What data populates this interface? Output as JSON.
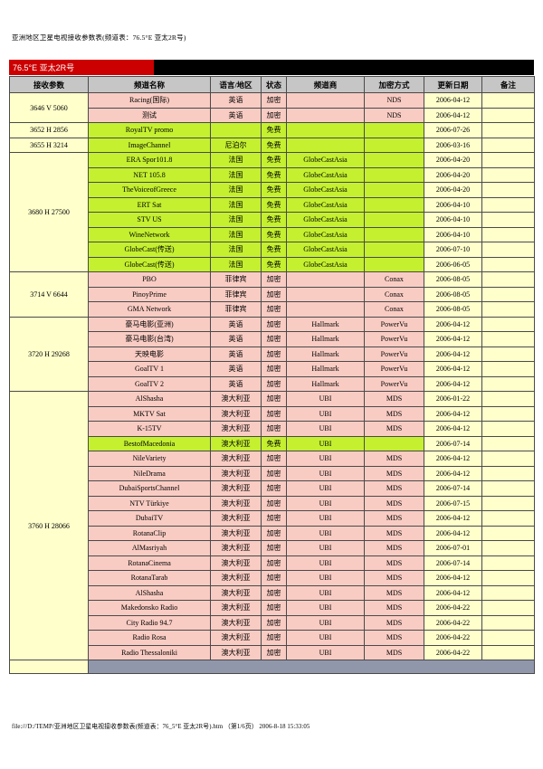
{
  "page": {
    "title": "亚洲地区卫星电视接收参数表(频道表：76.5°E 亚太2R号)",
    "footer": "file:///D:/TEMP/亚洲地区卫星电视接收参数表(频道表：76_5°E 亚太2R号).htm （第1/6页） 2006-8-18 15:33:05"
  },
  "banner": {
    "label": "76.5°E 亚太2R号"
  },
  "colors": {
    "banner_red": "#cc0000",
    "banner_black": "#000000",
    "header_gray": "#c6c6c6",
    "encrypted_row_bg": "#f9ccc3",
    "free_row_bg": "#c4f030",
    "param_column_bg": "#ffffcc",
    "end_bar_bg": "#9197ab",
    "encrypted_text": "#e00000",
    "free_text": "#008a00"
  },
  "table": {
    "headers": [
      "接收参数",
      "频道名称",
      "语言/地区",
      "状态",
      "频道商",
      "加密方式",
      "更新日期",
      "备注"
    ],
    "rows": [
      {
        "param": "3646 V 5060",
        "span": 2,
        "name": "Racing(国际)",
        "lang": "英语",
        "status": "加密",
        "free": false,
        "provider": "",
        "encryption": "NDS",
        "date": "2006-04-12",
        "note": ""
      },
      {
        "name": "测试",
        "lang": "英语",
        "status": "加密",
        "free": false,
        "provider": "",
        "encryption": "NDS",
        "date": "2006-04-12",
        "note": ""
      },
      {
        "param": "3652 H 2856",
        "span": 1,
        "name": "RoyalTV promo",
        "lang": "",
        "status": "免费",
        "free": true,
        "provider": "",
        "encryption": "",
        "date": "2006-07-26",
        "note": ""
      },
      {
        "param": "3655 H 3214",
        "span": 1,
        "name": "ImageChannel",
        "lang": "尼泊尔",
        "status": "免费",
        "free": true,
        "provider": "",
        "encryption": "",
        "date": "2006-03-16",
        "note": ""
      },
      {
        "param": "3680 H 27500",
        "span": 8,
        "name": "ERA Spor101.8",
        "lang": "法国",
        "status": "免费",
        "free": true,
        "provider": "GlobeCastAsia",
        "encryption": "",
        "date": "2006-04-20",
        "note": ""
      },
      {
        "name": "NET 105.8",
        "lang": "法国",
        "status": "免费",
        "free": true,
        "provider": "GlobeCastAsia",
        "encryption": "",
        "date": "2006-04-20",
        "note": ""
      },
      {
        "name": "TheVoiceofGreece",
        "lang": "法国",
        "status": "免费",
        "free": true,
        "provider": "GlobeCastAsia",
        "encryption": "",
        "date": "2006-04-20",
        "note": ""
      },
      {
        "name": "ERT Sat",
        "lang": "法国",
        "status": "免费",
        "free": true,
        "provider": "GlobeCastAsia",
        "encryption": "",
        "date": "2006-04-10",
        "note": ""
      },
      {
        "name": "STV US",
        "lang": "法国",
        "status": "免费",
        "free": true,
        "provider": "GlobeCastAsia",
        "encryption": "",
        "date": "2006-04-10",
        "note": ""
      },
      {
        "name": "WineNetwork",
        "lang": "法国",
        "status": "免费",
        "free": true,
        "provider": "GlobeCastAsia",
        "encryption": "",
        "date": "2006-04-10",
        "note": ""
      },
      {
        "name": "GlobeCast(传送)",
        "lang": "法国",
        "status": "免费",
        "free": true,
        "provider": "GlobeCastAsia",
        "encryption": "",
        "date": "2006-07-10",
        "note": ""
      },
      {
        "name": "GlobeCast(传送)",
        "lang": "法国",
        "status": "免费",
        "free": true,
        "provider": "GlobeCastAsia",
        "encryption": "",
        "date": "2006-06-05",
        "note": ""
      },
      {
        "param": "3714 V 6644",
        "span": 3,
        "name": "PBO",
        "lang": "菲律宾",
        "status": "加密",
        "free": false,
        "provider": "",
        "encryption": "Conax",
        "date": "2006-08-05",
        "note": ""
      },
      {
        "name": "PinoyPrime",
        "lang": "菲律宾",
        "status": "加密",
        "free": false,
        "provider": "",
        "encryption": "Conax",
        "date": "2006-08-05",
        "note": ""
      },
      {
        "name": "GMA Network",
        "lang": "菲律宾",
        "status": "加密",
        "free": false,
        "provider": "",
        "encryption": "Conax",
        "date": "2006-08-05",
        "note": ""
      },
      {
        "param": "3720 H 29268",
        "span": 5,
        "name": "豪马电影(亚洲)",
        "lang": "英语",
        "status": "加密",
        "free": false,
        "provider": "Hallmark",
        "encryption": "PowerVu",
        "date": "2006-04-12",
        "note": ""
      },
      {
        "name": "豪马电影(台湾)",
        "lang": "英语",
        "status": "加密",
        "free": false,
        "provider": "Hallmark",
        "encryption": "PowerVu",
        "date": "2006-04-12",
        "note": ""
      },
      {
        "name": "天映电影",
        "lang": "英语",
        "status": "加密",
        "free": false,
        "provider": "Hallmark",
        "encryption": "PowerVu",
        "date": "2006-04-12",
        "note": ""
      },
      {
        "name": "GoalTV 1",
        "lang": "英语",
        "status": "加密",
        "free": false,
        "provider": "Hallmark",
        "encryption": "PowerVu",
        "date": "2006-04-12",
        "note": ""
      },
      {
        "name": "GoalTV 2",
        "lang": "英语",
        "status": "加密",
        "free": false,
        "provider": "Hallmark",
        "encryption": "PowerVu",
        "date": "2006-04-12",
        "note": ""
      },
      {
        "param": "3760 H 28066",
        "span": 18,
        "name": "AlShasha",
        "lang": "澳大利亚",
        "status": "加密",
        "free": false,
        "provider": "UBI",
        "encryption": "MDS",
        "date": "2006-01-22",
        "note": ""
      },
      {
        "name": "MKTV Sat",
        "lang": "澳大利亚",
        "status": "加密",
        "free": false,
        "provider": "UBI",
        "encryption": "MDS",
        "date": "2006-04-12",
        "note": ""
      },
      {
        "name": "K-15TV",
        "lang": "澳大利亚",
        "status": "加密",
        "free": false,
        "provider": "UBI",
        "encryption": "MDS",
        "date": "2006-04-12",
        "note": ""
      },
      {
        "name": "BestofMacedonia",
        "lang": "澳大利亚",
        "status": "免费",
        "free": true,
        "provider": "UBI",
        "encryption": "",
        "date": "2006-07-14",
        "note": ""
      },
      {
        "name": "NileVariety",
        "lang": "澳大利亚",
        "status": "加密",
        "free": false,
        "provider": "UBI",
        "encryption": "MDS",
        "date": "2006-04-12",
        "note": ""
      },
      {
        "name": "NileDrama",
        "lang": "澳大利亚",
        "status": "加密",
        "free": false,
        "provider": "UBI",
        "encryption": "MDS",
        "date": "2006-04-12",
        "note": ""
      },
      {
        "name": "DubaiSportsChannel",
        "lang": "澳大利亚",
        "status": "加密",
        "free": false,
        "provider": "UBI",
        "encryption": "MDS",
        "date": "2006-07-14",
        "note": ""
      },
      {
        "name": "NTV Türkiye",
        "lang": "澳大利亚",
        "status": "加密",
        "free": false,
        "provider": "UBI",
        "encryption": "MDS",
        "date": "2006-07-15",
        "note": ""
      },
      {
        "name": "DubaiTV",
        "lang": "澳大利亚",
        "status": "加密",
        "free": false,
        "provider": "UBI",
        "encryption": "MDS",
        "date": "2006-04-12",
        "note": ""
      },
      {
        "name": "RotanaClip",
        "lang": "澳大利亚",
        "status": "加密",
        "free": false,
        "provider": "UBI",
        "encryption": "MDS",
        "date": "2006-04-12",
        "note": ""
      },
      {
        "name": "AlMasriyah",
        "lang": "澳大利亚",
        "status": "加密",
        "free": false,
        "provider": "UBI",
        "encryption": "MDS",
        "date": "2006-07-01",
        "note": ""
      },
      {
        "name": "RotanaCinema",
        "lang": "澳大利亚",
        "status": "加密",
        "free": false,
        "provider": "UBI",
        "encryption": "MDS",
        "date": "2006-07-14",
        "note": ""
      },
      {
        "name": "RotanaTarab",
        "lang": "澳大利亚",
        "status": "加密",
        "free": false,
        "provider": "UBI",
        "encryption": "MDS",
        "date": "2006-04-12",
        "note": ""
      },
      {
        "name": "AlShasha",
        "lang": "澳大利亚",
        "status": "加密",
        "free": false,
        "provider": "UBI",
        "encryption": "MDS",
        "date": "2006-04-12",
        "note": ""
      },
      {
        "name": "Makedonsko Radio",
        "lang": "澳大利亚",
        "status": "加密",
        "free": false,
        "provider": "UBI",
        "encryption": "MDS",
        "date": "2006-04-22",
        "note": ""
      },
      {
        "name": "City Radio 94.7",
        "lang": "澳大利亚",
        "status": "加密",
        "free": false,
        "provider": "UBI",
        "encryption": "MDS",
        "date": "2006-04-22",
        "note": ""
      },
      {
        "name": "Radio Rosa",
        "lang": "澳大利亚",
        "status": "加密",
        "free": false,
        "provider": "UBI",
        "encryption": "MDS",
        "date": "2006-04-22",
        "note": ""
      },
      {
        "name": "Radio Thessaloniki",
        "lang": "澳大利亚",
        "status": "加密",
        "free": false,
        "provider": "UBI",
        "encryption": "MDS",
        "date": "2006-04-22",
        "note": ""
      }
    ],
    "end_bar": true
  }
}
